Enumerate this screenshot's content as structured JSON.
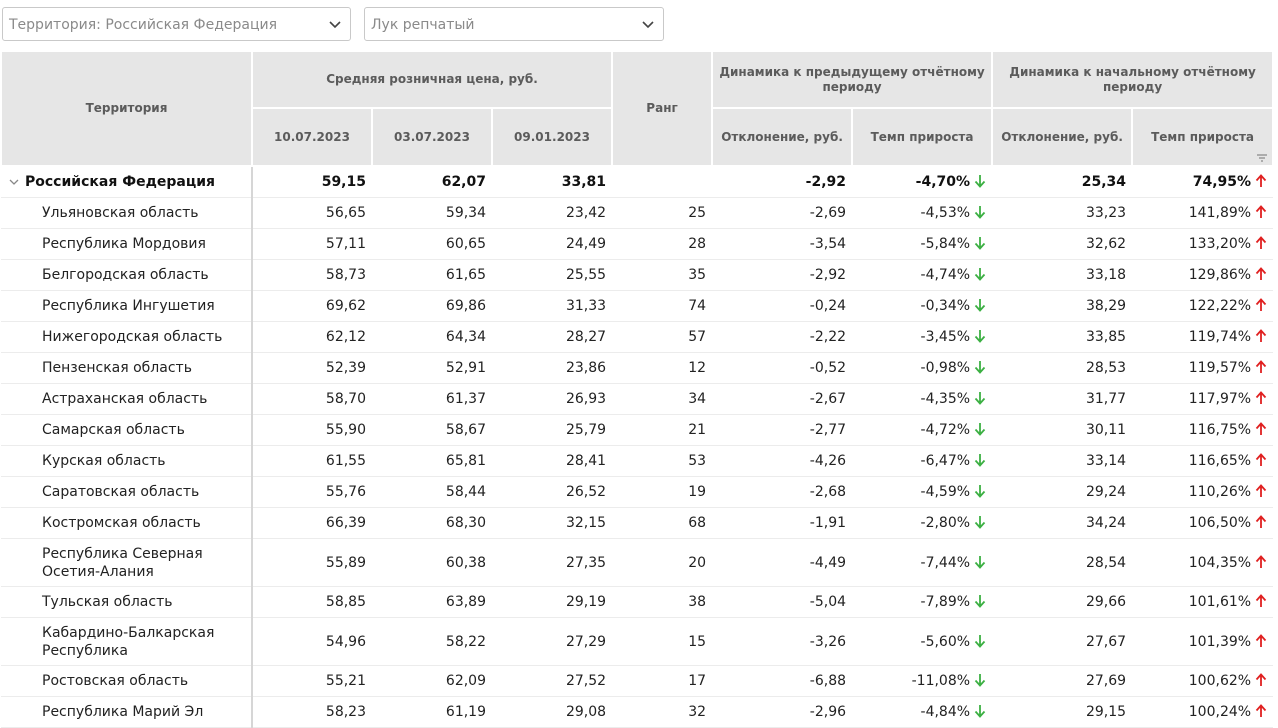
{
  "filters": {
    "territory": "Территория: Российская  Федерация",
    "product": "Лук репчатый"
  },
  "header": {
    "territory": "Территория",
    "avg_price": "Средняя розничная цена, руб.",
    "dates": [
      "10.07.2023",
      "03.07.2023",
      "09.01.2023"
    ],
    "rank": "Ранг",
    "dyn_prev": "Динамика к предыдущему отчётному периоду",
    "dyn_start": "Динамика к начальному отчётному периоду",
    "deviation": "Отклонение, руб.",
    "growth": "Темп прироста"
  },
  "colors": {
    "down": "#3cb043",
    "up": "#e02020",
    "header_bg": "#e6e6e6"
  },
  "rows": [
    {
      "name": "Российская Федерация",
      "p1": "59,15",
      "p2": "62,07",
      "p3": "33,81",
      "rank": "",
      "d1": "-2,92",
      "g1": "-4,70%",
      "d2": "25,34",
      "g2": "74,95%"
    },
    {
      "name": "Ульяновская область",
      "p1": "56,65",
      "p2": "59,34",
      "p3": "23,42",
      "rank": "25",
      "d1": "-2,69",
      "g1": "-4,53%",
      "d2": "33,23",
      "g2": "141,89%"
    },
    {
      "name": "Республика Мордовия",
      "p1": "57,11",
      "p2": "60,65",
      "p3": "24,49",
      "rank": "28",
      "d1": "-3,54",
      "g1": "-5,84%",
      "d2": "32,62",
      "g2": "133,20%"
    },
    {
      "name": "Белгородская область",
      "p1": "58,73",
      "p2": "61,65",
      "p3": "25,55",
      "rank": "35",
      "d1": "-2,92",
      "g1": "-4,74%",
      "d2": "33,18",
      "g2": "129,86%"
    },
    {
      "name": "Республика Ингушетия",
      "p1": "69,62",
      "p2": "69,86",
      "p3": "31,33",
      "rank": "74",
      "d1": "-0,24",
      "g1": "-0,34%",
      "d2": "38,29",
      "g2": "122,22%"
    },
    {
      "name": "Нижегородская область",
      "p1": "62,12",
      "p2": "64,34",
      "p3": "28,27",
      "rank": "57",
      "d1": "-2,22",
      "g1": "-3,45%",
      "d2": "33,85",
      "g2": "119,74%"
    },
    {
      "name": "Пензенская область",
      "p1": "52,39",
      "p2": "52,91",
      "p3": "23,86",
      "rank": "12",
      "d1": "-0,52",
      "g1": "-0,98%",
      "d2": "28,53",
      "g2": "119,57%"
    },
    {
      "name": "Астраханская область",
      "p1": "58,70",
      "p2": "61,37",
      "p3": "26,93",
      "rank": "34",
      "d1": "-2,67",
      "g1": "-4,35%",
      "d2": "31,77",
      "g2": "117,97%"
    },
    {
      "name": "Самарская область",
      "p1": "55,90",
      "p2": "58,67",
      "p3": "25,79",
      "rank": "21",
      "d1": "-2,77",
      "g1": "-4,72%",
      "d2": "30,11",
      "g2": "116,75%"
    },
    {
      "name": "Курская область",
      "p1": "61,55",
      "p2": "65,81",
      "p3": "28,41",
      "rank": "53",
      "d1": "-4,26",
      "g1": "-6,47%",
      "d2": "33,14",
      "g2": "116,65%"
    },
    {
      "name": "Саратовская область",
      "p1": "55,76",
      "p2": "58,44",
      "p3": "26,52",
      "rank": "19",
      "d1": "-2,68",
      "g1": "-4,59%",
      "d2": "29,24",
      "g2": "110,26%"
    },
    {
      "name": "Костромская область",
      "p1": "66,39",
      "p2": "68,30",
      "p3": "32,15",
      "rank": "68",
      "d1": "-1,91",
      "g1": "-2,80%",
      "d2": "34,24",
      "g2": "106,50%"
    },
    {
      "name": "Республика Северная Осетия-Алания",
      "p1": "55,89",
      "p2": "60,38",
      "p3": "27,35",
      "rank": "20",
      "d1": "-4,49",
      "g1": "-7,44%",
      "d2": "28,54",
      "g2": "104,35%"
    },
    {
      "name": "Тульская область",
      "p1": "58,85",
      "p2": "63,89",
      "p3": "29,19",
      "rank": "38",
      "d1": "-5,04",
      "g1": "-7,89%",
      "d2": "29,66",
      "g2": "101,61%"
    },
    {
      "name": "Кабардино-Балкарская Республика",
      "p1": "54,96",
      "p2": "58,22",
      "p3": "27,29",
      "rank": "15",
      "d1": "-3,26",
      "g1": "-5,60%",
      "d2": "27,67",
      "g2": "101,39%"
    },
    {
      "name": "Ростовская область",
      "p1": "55,21",
      "p2": "62,09",
      "p3": "27,52",
      "rank": "17",
      "d1": "-6,88",
      "g1": "-11,08%",
      "d2": "27,69",
      "g2": "100,62%"
    },
    {
      "name": "Республика Марий Эл",
      "p1": "58,23",
      "p2": "61,19",
      "p3": "29,08",
      "rank": "32",
      "d1": "-2,96",
      "g1": "-4,84%",
      "d2": "29,15",
      "g2": "100,24%"
    }
  ]
}
